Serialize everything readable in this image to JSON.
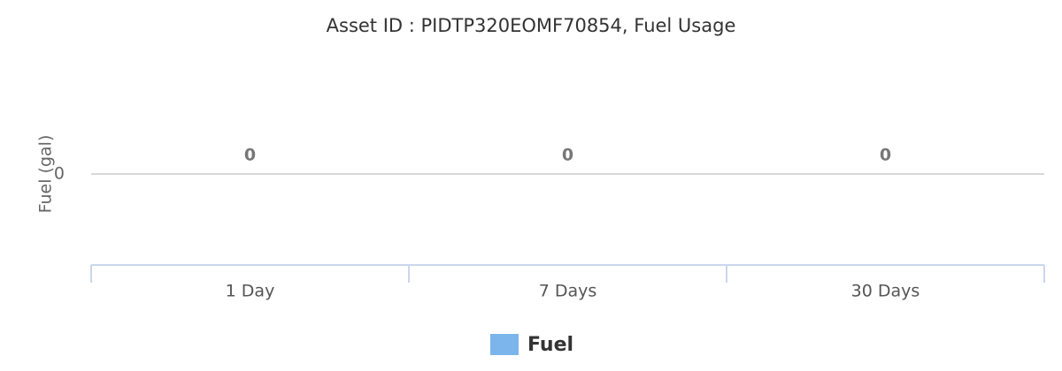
{
  "chart_data": {
    "type": "bar",
    "title": "Asset ID : PIDTP320EOMF70854, Fuel Usage",
    "y_label": "Fuel (gal)",
    "categories": [
      "1 Day",
      "7 Days",
      "30 Days"
    ],
    "series": [
      {
        "name": "Fuel",
        "color": "#7cb5ec",
        "values": [
          0,
          0,
          0
        ]
      }
    ],
    "ylim": [
      -1,
      1
    ],
    "yticks": [
      0
    ],
    "grid": true,
    "legend": "bottom"
  }
}
